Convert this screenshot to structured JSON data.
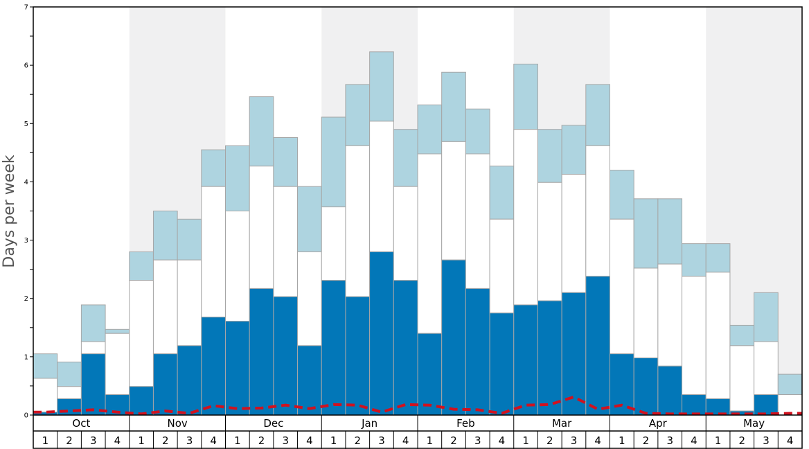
{
  "chart_data": {
    "type": "bar",
    "ylabel": "Days per week",
    "ylim": [
      0,
      7
    ],
    "yticks": [
      "0",
      "1",
      "2",
      "3",
      "4",
      "5",
      "6",
      "7"
    ],
    "months": [
      "Oct",
      "Nov",
      "Dec",
      "Jan",
      "Feb",
      "Mar",
      "Apr",
      "May"
    ],
    "week_labels": [
      "1",
      "2",
      "3",
      "4"
    ],
    "shaded_months": [
      "Nov",
      "Jan",
      "Mar",
      "May"
    ],
    "colors": {
      "dark_segment": "#0277b8",
      "middle_segment": "#ffffff",
      "top_segment": "#aed4e0",
      "bar_border": "#a6a6a6",
      "shaded_band": "#f0f0f1",
      "line": "#d0121f"
    },
    "series": [
      {
        "role": "lower",
        "values": [
          0.05,
          0.28,
          1.05,
          0.35,
          0.49,
          1.05,
          1.19,
          1.68,
          1.61,
          2.17,
          2.03,
          1.19,
          2.31,
          2.03,
          2.8,
          2.31,
          1.4,
          2.66,
          2.17,
          1.75,
          1.89,
          1.96,
          2.1,
          2.38,
          1.05,
          0.98,
          0.84,
          0.35,
          0.28,
          0.07,
          0.35,
          0.0
        ]
      },
      {
        "role": "middle_top",
        "values": [
          0.63,
          0.49,
          1.26,
          1.4,
          2.31,
          2.66,
          2.66,
          3.92,
          3.5,
          4.27,
          3.92,
          2.8,
          3.57,
          4.62,
          5.04,
          3.92,
          4.48,
          4.69,
          4.48,
          3.36,
          4.9,
          3.99,
          4.13,
          4.62,
          3.36,
          2.52,
          2.59,
          2.38,
          2.45,
          1.19,
          1.26,
          0.35
        ]
      },
      {
        "role": "upper_top",
        "values": [
          1.05,
          0.91,
          1.89,
          1.47,
          2.8,
          3.5,
          3.36,
          4.55,
          4.62,
          5.46,
          4.76,
          3.92,
          5.11,
          5.67,
          6.23,
          4.9,
          5.32,
          5.88,
          5.25,
          4.27,
          6.02,
          4.9,
          4.97,
          5.67,
          4.2,
          3.71,
          3.71,
          2.94,
          2.94,
          1.54,
          2.1,
          0.7
        ]
      },
      {
        "role": "dashed_line",
        "values": [
          0.05,
          0.07,
          0.09,
          0.05,
          0.02,
          0.07,
          0.03,
          0.16,
          0.11,
          0.12,
          0.17,
          0.11,
          0.18,
          0.17,
          0.05,
          0.18,
          0.17,
          0.1,
          0.09,
          0.03,
          0.17,
          0.18,
          0.31,
          0.1,
          0.17,
          0.03,
          0.02,
          0.02,
          0.02,
          0.02,
          0.02,
          0.03
        ]
      }
    ]
  }
}
